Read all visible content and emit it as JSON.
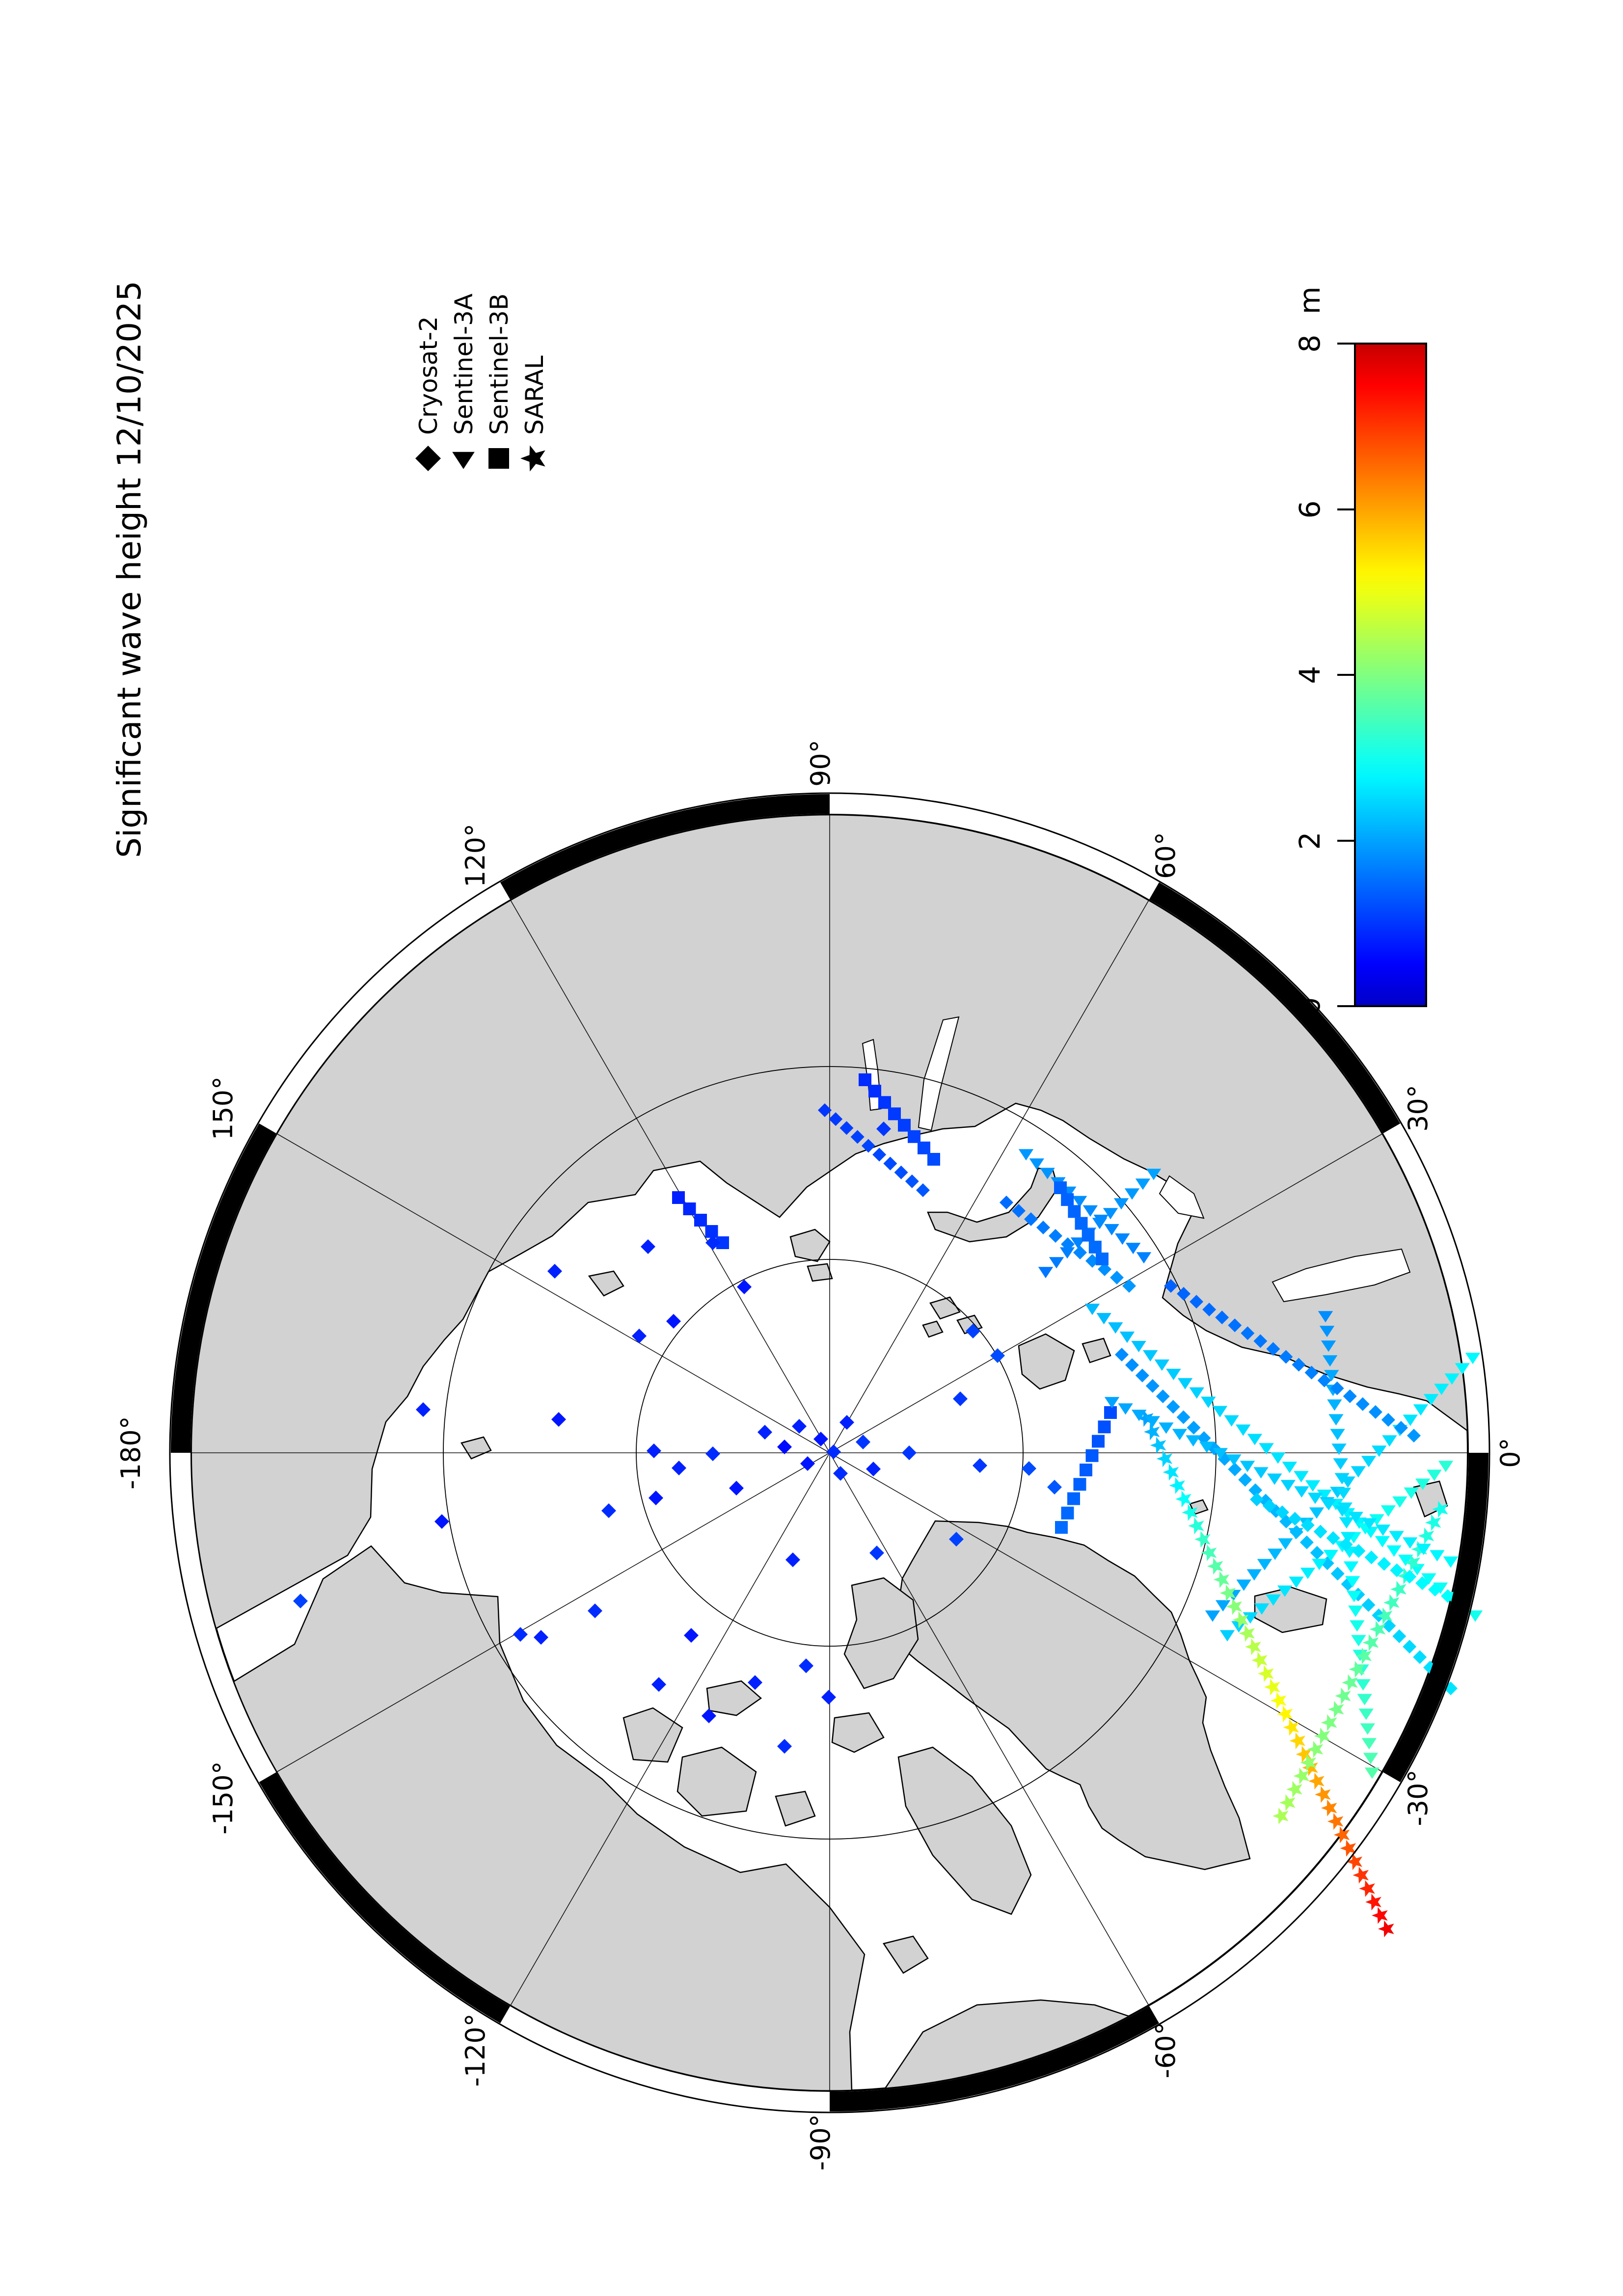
{
  "title": "Significant wave height 12/10/2025",
  "legend": {
    "items": [
      {
        "label": "Cryosat-2",
        "marker": "diamond"
      },
      {
        "label": "Sentinel-3A",
        "marker": "triangle"
      },
      {
        "label": "Sentinel-3B",
        "marker": "square"
      },
      {
        "label": "SARAL",
        "marker": "star"
      }
    ]
  },
  "colorbar": {
    "unit": "m",
    "ticks": [
      "8",
      "6",
      "4",
      "2",
      "0"
    ],
    "min": 0,
    "max": 8,
    "palette": [
      "#0000C7",
      "#0040FF",
      "#00A8FF",
      "#00F0E0",
      "#80FF80",
      "#F0F000",
      "#FF9000",
      "#FF2000",
      "#C70000"
    ]
  },
  "map": {
    "meridian_labels": [
      "90°",
      "60°",
      "30°",
      "0°",
      "-30°",
      "-60°",
      "-90°",
      "-120°",
      "-150°",
      "-180°",
      "150°",
      "120°"
    ],
    "land_color": "#d2d2d2",
    "ocean_color": "#ffffff"
  },
  "chart_data": {
    "type": "scatter",
    "title": "Significant wave height 12/10/2025",
    "projection": "north-polar-stereographic",
    "units": "m",
    "value_range": [
      0,
      8
    ],
    "legend_position": "top-right",
    "colorbar_ticks": [
      8,
      6,
      4,
      2,
      0
    ],
    "tracks": [
      {
        "satellite": "Sentinel-3A",
        "from": [
          2130,
          2590
        ],
        "to": [
          2350,
          2390
        ],
        "swh": [
          1.6,
          2.0
        ]
      },
      {
        "satellite": "Sentinel-3A",
        "from": [
          2090,
          2350
        ],
        "to": [
          2330,
          2560
        ],
        "swh": [
          1.9,
          1.7
        ]
      },
      {
        "satellite": "Cryosat-2",
        "from": [
          2050,
          2450
        ],
        "to": [
          2300,
          2620
        ],
        "swh": [
          1.5,
          1.9
        ]
      },
      {
        "satellite": "Sentinel-3B",
        "from": [
          2160,
          2420
        ],
        "to": [
          2245,
          2565
        ],
        "swh": [
          1.4,
          1.5
        ]
      },
      {
        "satellite": "Sentinel-3B",
        "from": [
          1762,
          2200
        ],
        "to": [
          1902,
          2362
        ],
        "swh": [
          0.9,
          1.2
        ]
      },
      {
        "satellite": "Cryosat-2",
        "from": [
          1680,
          2262
        ],
        "to": [
          1880,
          2425
        ],
        "swh": [
          1.0,
          1.3
        ]
      },
      {
        "satellite": "Sentinel-3B",
        "from": [
          1382,
          2440
        ],
        "to": [
          1472,
          2532
        ],
        "swh": [
          0.8,
          1.0
        ]
      },
      {
        "satellite": "Sentinel-3A",
        "from": [
          2225,
          2665
        ],
        "to": [
          3005,
          3290
        ],
        "swh": [
          2.2,
          3.0
        ]
      },
      {
        "satellite": "Sentinel-3A",
        "from": [
          3000,
          2765
        ],
        "to": [
          2470,
          3290
        ],
        "swh": [
          2.8,
          2.0
        ]
      },
      {
        "satellite": "Cryosat-2",
        "from": [
          2285,
          2760
        ],
        "to": [
          2955,
          3440
        ],
        "swh": [
          1.8,
          2.6
        ]
      },
      {
        "satellite": "Sentinel-3A",
        "from": [
          2945,
          2985
        ],
        "to": [
          2500,
          3330
        ],
        "swh": [
          3.2,
          2.4
        ]
      },
      {
        "satellite": "SARAL",
        "from": [
          2335,
          2890
        ],
        "to": [
          2825,
          3930
        ],
        "swh": [
          2.0,
          7.6
        ]
      },
      {
        "satellite": "Sentinel-3A",
        "from": [
          2700,
          2680
        ],
        "to": [
          2795,
          3610
        ],
        "swh": [
          1.8,
          3.6
        ]
      },
      {
        "satellite": "Cryosat-2",
        "from": [
          2385,
          2620
        ],
        "to": [
          2880,
          2925
        ],
        "swh": [
          1.4,
          1.9
        ]
      },
      {
        "satellite": "SARAL",
        "from": [
          2935,
          3075
        ],
        "to": [
          2610,
          3700
        ],
        "swh": [
          3.0,
          4.4
        ]
      },
      {
        "satellite": "Sentinel-3B",
        "from": [
          2262,
          2878
        ],
        "to": [
          2162,
          3112
        ],
        "swh": [
          1.2,
          1.5
        ]
      },
      {
        "satellite": "Sentinel-3A",
        "from": [
          2265,
          2855
        ],
        "to": [
          2955,
          3180
        ],
        "swh": [
          2.0,
          2.8
        ]
      },
      {
        "satellite": "Cryosat-2",
        "from": [
          2560,
          3055
        ],
        "to": [
          2975,
          3265
        ],
        "swh": [
          2.4,
          2.9
        ]
      }
    ],
    "points": [
      [
        1628,
        2906,
        0.8
      ],
      [
        1672,
        2932,
        0.7
      ],
      [
        1698,
        2958,
        0.9
      ],
      [
        1725,
        2898,
        0.8
      ],
      [
        1758,
        2938,
        1.0
      ],
      [
        1645,
        2982,
        0.7
      ],
      [
        1712,
        3002,
        0.9
      ],
      [
        1779,
        2993,
        0.8
      ],
      [
        1852,
        2960,
        1.0
      ],
      [
        1598,
        2948,
        0.6
      ],
      [
        1558,
        2918,
        0.8
      ],
      [
        1500,
        3032,
        0.7
      ],
      [
        1452,
        2962,
        0.9
      ],
      [
        1383,
        2991,
        0.8
      ],
      [
        1336,
        3052,
        0.7
      ],
      [
        1240,
        3078,
        0.9
      ],
      [
        1615,
        3178,
        0.8
      ],
      [
        1786,
        3164,
        1.0
      ],
      [
        1948,
        3136,
        1.1
      ],
      [
        1996,
        2986,
        1.0
      ],
      [
        1332,
        2956,
        0.8
      ],
      [
        1212,
        3282,
        0.9
      ],
      [
        1408,
        3332,
        0.7
      ],
      [
        1538,
        3428,
        0.8
      ],
      [
        1642,
        3394,
        0.9
      ],
      [
        1688,
        3458,
        0.8
      ],
      [
        1444,
        3496,
        0.7
      ],
      [
        1342,
        3432,
        0.8
      ],
      [
        1598,
        3558,
        0.9
      ],
      [
        1102,
        3336,
        0.8
      ],
      [
        1060,
        3330,
        0.9
      ],
      [
        612,
        3262,
        1.1
      ],
      [
        1302,
        2722,
        0.8
      ],
      [
        1372,
        2692,
        0.7
      ],
      [
        1982,
        2712,
        1.1
      ],
      [
        2032,
        2762,
        1.2
      ],
      [
        862,
        2872,
        0.8
      ],
      [
        1138,
        2892,
        0.7
      ],
      [
        1320,
        2540,
        0.8
      ],
      [
        1452,
        2532,
        0.9
      ],
      [
        1516,
        2622,
        0.7
      ],
      [
        1956,
        2850,
        1.0
      ],
      [
        2096,
        2992,
        1.2
      ],
      [
        2148,
        3030,
        1.3
      ],
      [
        1800,
        2300,
        1.0
      ],
      [
        900,
        3100,
        0.7
      ],
      [
        1130,
        2590,
        0.8
      ]
    ]
  }
}
